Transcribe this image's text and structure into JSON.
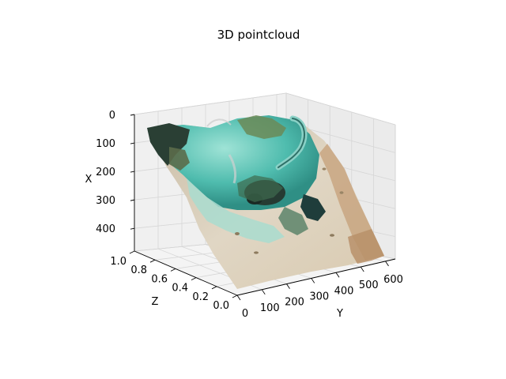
{
  "chart_data": {
    "type": "scatter",
    "projection": "3d",
    "title": "3D pointcloud",
    "xlabel": "X",
    "ylabel": "Y",
    "zlabel": "Z",
    "x_ticks": [
      "0",
      "100",
      "200",
      "300",
      "400"
    ],
    "y_ticks": [
      "0",
      "100",
      "200",
      "300",
      "400",
      "500",
      "600"
    ],
    "z_ticks": [
      "0.0",
      "0.2",
      "0.4",
      "0.6",
      "0.8",
      "1.0"
    ],
    "xlim": [
      0,
      480
    ],
    "ylim": [
      0,
      640
    ],
    "zlim": [
      0,
      1
    ],
    "grid": true,
    "legend": "none",
    "colors": {
      "water": "#5ec9b8",
      "rock": "#2f4a3a",
      "sand": "#d8cbb4",
      "shore": "#b8916a",
      "pane": "#f2f2f2"
    }
  }
}
